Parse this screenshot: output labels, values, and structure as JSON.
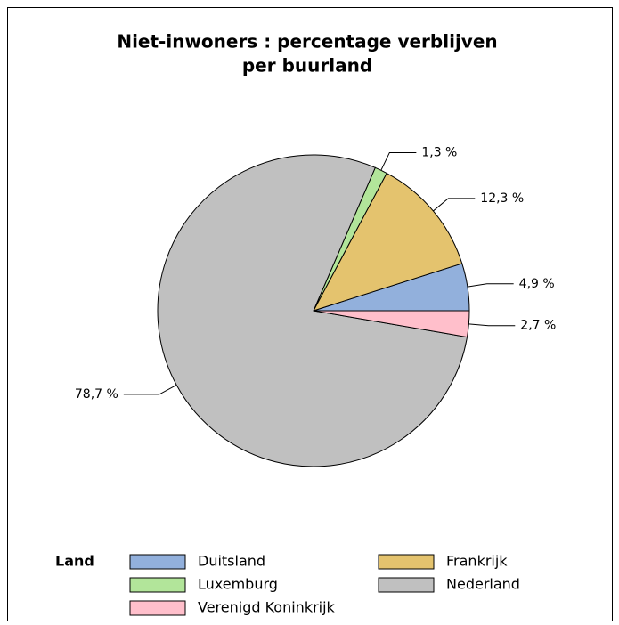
{
  "chart_data": {
    "type": "pie",
    "title": [
      "Niet-inwoners : percentage verblijven",
      "per buurland"
    ],
    "legend_title": "Land",
    "categories": [
      "Duitsland",
      "Frankrijk",
      "Luxemburg",
      "Nederland",
      "Verenigd Koninkrijk"
    ],
    "values": [
      4.9,
      12.3,
      1.3,
      78.7,
      2.7
    ],
    "value_labels": [
      "4,9 %",
      "12,3 %",
      "1,3 %",
      "78,7 %",
      "2,7 %"
    ],
    "colors": [
      "#92b0dc",
      "#e4c36e",
      "#b2e59a",
      "#c0c0c0",
      "#ffbfcb"
    ]
  }
}
